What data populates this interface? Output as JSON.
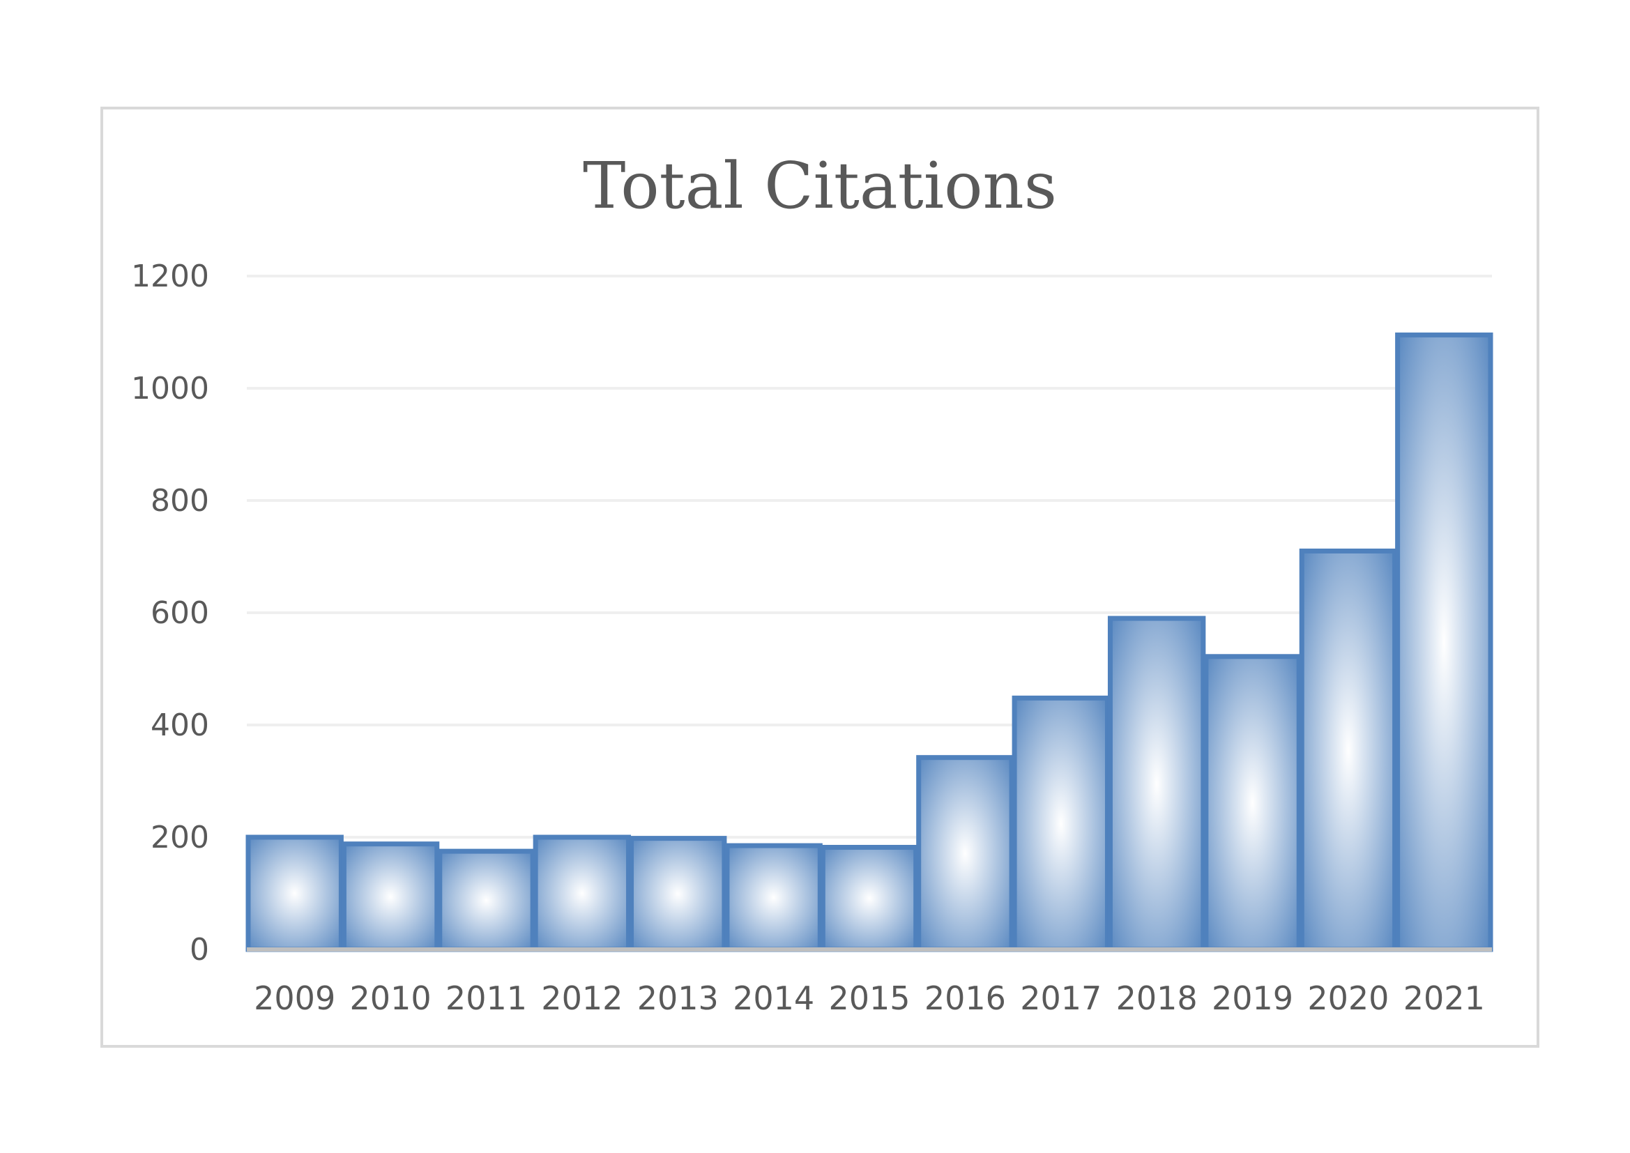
{
  "chart_data": {
    "type": "bar",
    "title": "Total Citations",
    "xlabel": "",
    "ylabel": "",
    "categories": [
      "2009",
      "2010",
      "2011",
      "2012",
      "2013",
      "2014",
      "2015",
      "2016",
      "2017",
      "2018",
      "2019",
      "2020",
      "2021"
    ],
    "values": [
      200,
      188,
      175,
      200,
      198,
      185,
      182,
      342,
      448,
      590,
      522,
      710,
      1095
    ],
    "ylim": [
      0,
      1200
    ],
    "yticks": [
      "0",
      "200",
      "400",
      "600",
      "800",
      "1000",
      "1200"
    ],
    "ytick_values": [
      0,
      200,
      400,
      600,
      800,
      1000,
      1200
    ],
    "grid": true,
    "legend": "none",
    "colors": {
      "bar_edge": "#4f81bd",
      "bar_center": "#ffffff",
      "text": "#595959",
      "gridline": "#efefef",
      "axis": "#bfbfbf",
      "frame": "#d9d9d9"
    }
  }
}
